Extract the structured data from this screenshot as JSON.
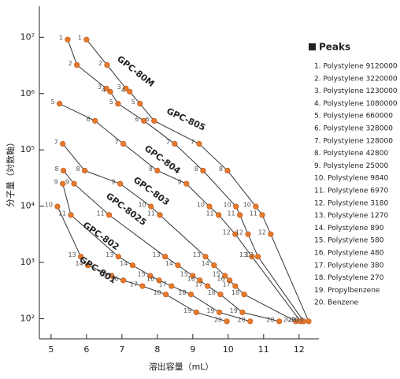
{
  "chart_data": {
    "type": "line",
    "xlabel": "溶出容量（mL）",
    "ylabel": "分子量（対数軸）",
    "xlim": [
      4.67,
      12.56
    ],
    "xticks": [
      5,
      6,
      7,
      8,
      9,
      10,
      11,
      12
    ],
    "yscale": "log",
    "ylim": [
      44,
      35500000
    ],
    "yticks": [
      {
        "value": 100,
        "label": "10²"
      },
      {
        "value": 1000,
        "label": "10³"
      },
      {
        "value": 10000,
        "label": "10⁴"
      },
      {
        "value": 100000,
        "label": "10⁵"
      },
      {
        "value": 1000000,
        "label": "10⁶"
      },
      {
        "value": 10000000,
        "label": "10⁷"
      }
    ],
    "line_color": "#333333",
    "point_color": "#e8782a",
    "series": [
      {
        "name": "GPC-801",
        "point_labels": [
          "10",
          "13",
          "14",
          "15",
          "16",
          "17",
          "18",
          "19",
          "20"
        ],
        "x": [
          5.18,
          5.84,
          6.04,
          6.71,
          7.04,
          7.58,
          8.24,
          9.1,
          9.96
        ],
        "values": [
          9840,
          1270,
          890,
          580,
          480,
          380,
          270,
          130,
          90
        ]
      },
      {
        "name": "GPC-802",
        "point_labels": [
          "9",
          "11",
          "13",
          "14",
          "15",
          "16",
          "17",
          "18",
          "19",
          "20"
        ],
        "x": [
          5.33,
          5.56,
          6.9,
          7.3,
          7.8,
          8.05,
          8.4,
          8.95,
          9.75,
          10.62
        ],
        "values": [
          25000,
          6970,
          1270,
          890,
          580,
          480,
          380,
          270,
          130,
          90
        ]
      },
      {
        "name": "GPC-8025",
        "point_labels": [
          "8",
          "9",
          "11",
          "13",
          "14",
          "15",
          "16",
          "17",
          "18",
          "19",
          "20"
        ],
        "x": [
          5.35,
          5.65,
          6.64,
          8.22,
          8.58,
          9.0,
          9.2,
          9.42,
          9.78,
          10.4,
          11.44
        ],
        "values": [
          42800,
          25000,
          6970,
          1270,
          890,
          580,
          480,
          380,
          270,
          130,
          90
        ]
      },
      {
        "name": "GPC-803",
        "point_labels": [
          "7",
          "8",
          "9",
          "10",
          "11",
          "13",
          "14",
          "15",
          "16",
          "17",
          "18",
          "20"
        ],
        "x": [
          5.33,
          5.95,
          6.95,
          7.82,
          8.07,
          9.36,
          9.6,
          9.91,
          10.04,
          10.2,
          10.45,
          11.91
        ],
        "values": [
          128000,
          42800,
          25000,
          9840,
          6970,
          1270,
          890,
          580,
          480,
          380,
          270,
          90
        ]
      },
      {
        "name": "GPC-804",
        "point_labels": [
          "5",
          "6",
          "7",
          "8",
          "9",
          "10",
          "11",
          "12",
          "13",
          "20"
        ],
        "x": [
          5.24,
          6.24,
          7.04,
          8.0,
          8.82,
          9.47,
          9.73,
          10.2,
          10.67,
          12.04
        ],
        "values": [
          660000,
          328000,
          128000,
          42800,
          25000,
          9840,
          6970,
          3180,
          1270,
          90
        ]
      },
      {
        "name": "GPC-805",
        "point_labels": [
          "1",
          "2",
          "3",
          "4",
          "5",
          "6",
          "7",
          "8",
          "10",
          "11",
          "12",
          "13",
          "20"
        ],
        "x": [
          5.47,
          5.73,
          6.56,
          6.67,
          6.89,
          7.62,
          8.49,
          9.29,
          10.22,
          10.33,
          10.56,
          10.84,
          12.13
        ],
        "values": [
          9120000,
          3220000,
          1230000,
          1080000,
          660000,
          328000,
          128000,
          42800,
          9840,
          6970,
          3180,
          1270,
          90
        ]
      },
      {
        "name": "GPC-80M",
        "point_labels": [
          "1",
          "2",
          "3",
          "4",
          "5",
          "6",
          "7",
          "8",
          "10",
          "11",
          "12",
          "20"
        ],
        "x": [
          6.0,
          6.58,
          7.11,
          7.22,
          7.51,
          7.91,
          9.18,
          9.98,
          10.78,
          10.96,
          11.2,
          12.27
        ],
        "values": [
          9120000,
          3220000,
          1230000,
          1080000,
          660000,
          328000,
          128000,
          42800,
          9840,
          6970,
          3180,
          90
        ]
      }
    ],
    "legend_title": "Peaks",
    "peaks": [
      "1. Polystylene 9120000",
      "2. Polystylene 3220000",
      "3. Polystylene 1230000",
      "4. Polystylene 1080000",
      "5. Polystylene 660000",
      "6. Polystylene 328000",
      "7. Polystylene 128000",
      "8. Polystylene 42800",
      "9. Polystylene 25000",
      "10. Polystylene 9840",
      "11. Polystylene 6970",
      "12. Polystylene 3180",
      "13. Polystylene 1270",
      "14. Polystylene 890",
      "15. Polystylene 580",
      "16. Polystylene 480",
      "17. Polystylene 380",
      "18. Polystylene 270",
      "19. Propylbenzene",
      "20. Benzene"
    ]
  }
}
